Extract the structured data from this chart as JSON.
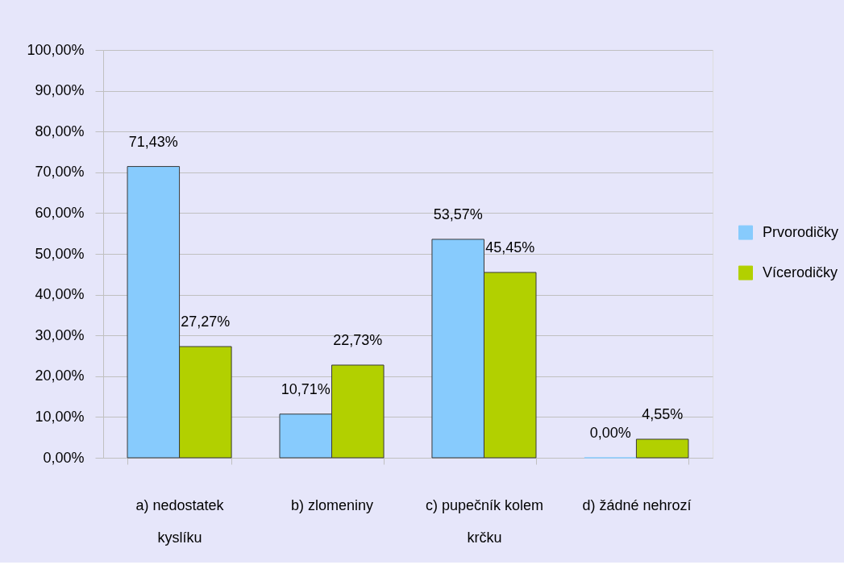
{
  "chart_data": {
    "type": "bar",
    "categories": [
      "a) nedostatek\nkyslíku",
      "b) zlomeniny",
      "c) pupečník kolem\nkrčku",
      "d) žádné nehrozí"
    ],
    "series": [
      {
        "name": "Prvorodičky",
        "color": "#87cbfd",
        "values": [
          71.43,
          10.71,
          53.57,
          0
        ],
        "value_labels": [
          "71,43%",
          "10,71%",
          "53,57%",
          "0,00%"
        ]
      },
      {
        "name": "Vícerodičky",
        "color": "#b2d000",
        "values": [
          27.27,
          22.73,
          45.45,
          4.55
        ],
        "value_labels": [
          "27,27%",
          "22,73%",
          "45,45%",
          "4,55%"
        ]
      }
    ],
    "ylim": [
      0,
      100
    ],
    "yticks": [
      {
        "value": 0,
        "label": "0,00%"
      },
      {
        "value": 10,
        "label": "10,00%"
      },
      {
        "value": 20,
        "label": "20,00%"
      },
      {
        "value": 30,
        "label": "30,00%"
      },
      {
        "value": 40,
        "label": "40,00%"
      },
      {
        "value": 50,
        "label": "50,00%"
      },
      {
        "value": 60,
        "label": "60,00%"
      },
      {
        "value": 70,
        "label": "70,00%"
      },
      {
        "value": 80,
        "label": "80,00%"
      },
      {
        "value": 90,
        "label": "90,00%"
      },
      {
        "value": 100,
        "label": "100,00%"
      }
    ],
    "grid": "y",
    "legend": "right"
  }
}
